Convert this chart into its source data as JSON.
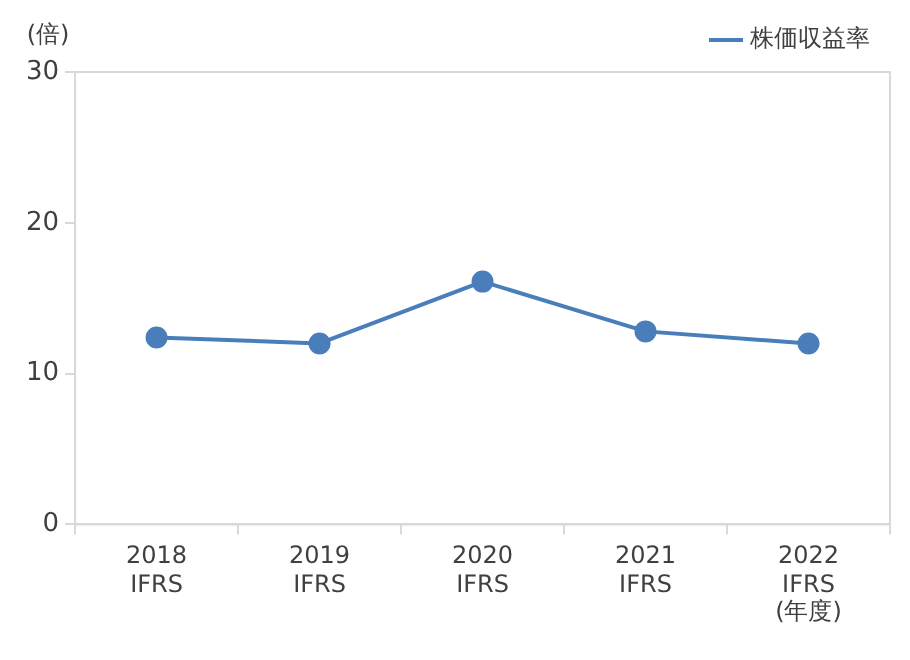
{
  "chart_data": {
    "type": "line",
    "ylabel": "(倍)",
    "xlabel": "(年度)",
    "categories": [
      "2018\nIFRS",
      "2019\nIFRS",
      "2020\nIFRS",
      "2021\nIFRS",
      "2022\nIFRS"
    ],
    "series": [
      {
        "name": "株価収益率",
        "color": "#4a7ebb",
        "values": [
          12.4,
          12.0,
          16.1,
          12.8,
          12.0
        ]
      }
    ],
    "ylim": [
      0,
      30
    ],
    "yticks": [
      0,
      10,
      20,
      30
    ],
    "grid": false,
    "legend": "top right",
    "marker": "circle",
    "line_style": "solid"
  }
}
